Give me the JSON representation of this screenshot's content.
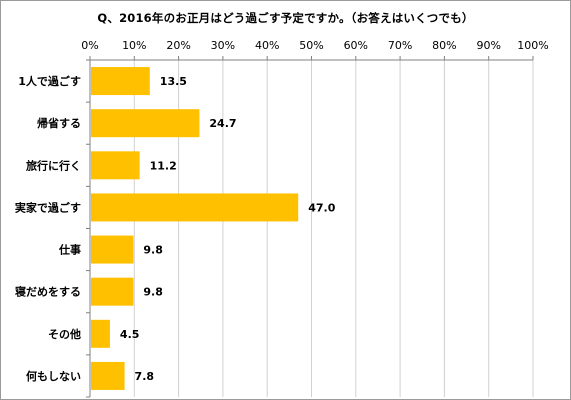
{
  "chart_title": "Q、2016年のお正月はどう過ごす予定ですか。（お答えはいくつでも）",
  "chart_data": {
    "type": "bar",
    "orientation": "horizontal",
    "title": "Q、2016年のお正月はどう過ごす予定ですか。（お答えはいくつでも）",
    "categories": [
      "1人で過ごす",
      "帰省する",
      "旅行に行く",
      "実家で過ごす",
      "仕事",
      "寝だめをする",
      "その他",
      "何もしない"
    ],
    "values": [
      13.5,
      24.7,
      11.2,
      47.0,
      9.8,
      9.8,
      4.5,
      7.8
    ],
    "value_labels": [
      "13.5",
      "24.7",
      "11.2",
      "47.0",
      "9.8",
      "9.8",
      "4.5",
      "7.8"
    ],
    "x_ticks": [
      "0%",
      "10%",
      "20%",
      "30%",
      "40%",
      "50%",
      "60%",
      "70%",
      "80%",
      "90%",
      "100%"
    ],
    "xlim": [
      0,
      100
    ],
    "xlabel": "",
    "ylabel": "",
    "grid": true,
    "axis_position": "top",
    "legend": "none",
    "colors": {
      "bar": "#FFC000",
      "grid": "#D0D0D0",
      "axis": "#808080"
    }
  }
}
